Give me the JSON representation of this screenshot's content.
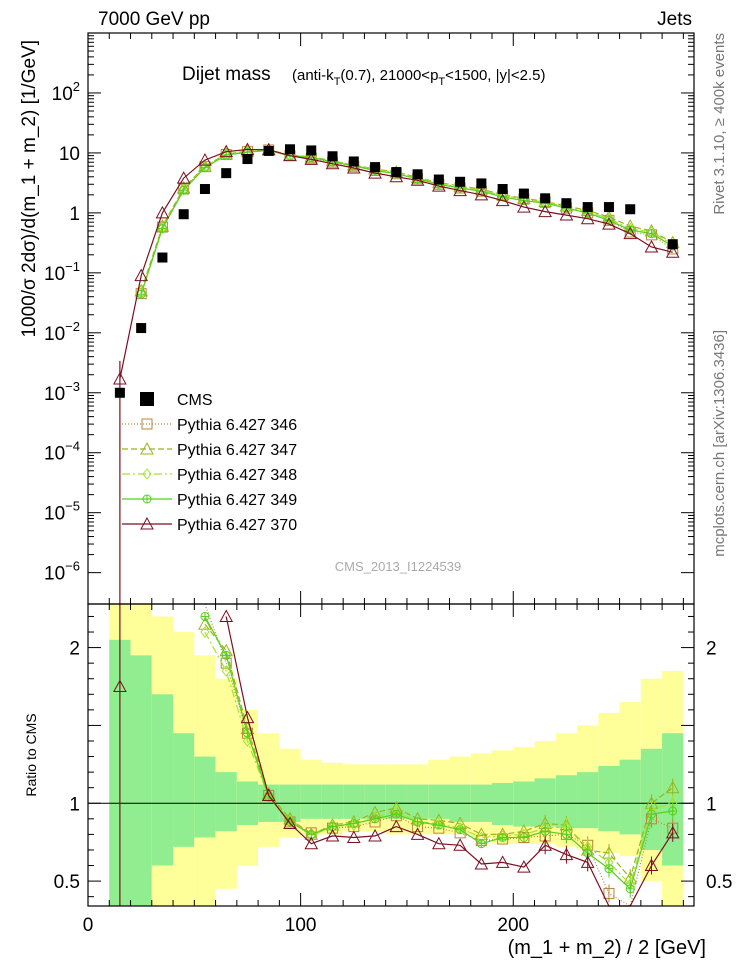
{
  "header": {
    "energy_label": "7000 GeV pp",
    "process_label": "Jets"
  },
  "side_labels": {
    "rivet": "Rivet 3.1.10, ≥ 400k events",
    "mcplots": "mcplots.cern.ch [arXiv:1306.3436]"
  },
  "analysis_id": "CMS_2013_I1224539",
  "colors": {
    "cms": "#000000",
    "p346": "#b8863a",
    "p347": "#9bb41a",
    "p348": "#a6e32a",
    "p349": "#55d11e",
    "p370": "#7a1020",
    "band_outer": "#ffff99",
    "band_inner": "#90ee90"
  },
  "chart_data": [
    {
      "type": "scatter",
      "panel": "main",
      "title": "Dijet mass",
      "title_detail": {
        "pre": "(anti-k",
        "sub1": "T",
        "mid1": "(0.7), 21000<p",
        "sub2": "T",
        "post": "<1500, |y|<2.5)"
      },
      "ylabel": "1000/σ 2dσ)/d(m_1 + m_2) [1/GeV]",
      "xlabel": "(m_1 + m_2) / 2 [GeV]",
      "yscale": "log",
      "ylim": [
        3e-07,
        1000
      ],
      "xlim": [
        0,
        285
      ],
      "x_ticks": [
        0,
        100,
        200
      ],
      "y_ticks": [
        {
          "value": 100,
          "base": "10",
          "exp": "2"
        },
        {
          "value": 10,
          "label": "10"
        },
        {
          "value": 1,
          "label": "1"
        },
        {
          "value": 0.1,
          "base": "10",
          "exp": "−1"
        },
        {
          "value": 0.01,
          "base": "10",
          "exp": "−2"
        },
        {
          "value": 0.001,
          "base": "10",
          "exp": "−3"
        },
        {
          "value": 0.0001,
          "base": "10",
          "exp": "−4"
        },
        {
          "value": 1e-05,
          "base": "10",
          "exp": "−5"
        },
        {
          "value": 1e-06,
          "base": "10",
          "exp": "−6"
        }
      ],
      "legend_position": "middle-left",
      "x": [
        15,
        25,
        35,
        45,
        55,
        65,
        75,
        85,
        95,
        105,
        115,
        125,
        135,
        145,
        155,
        165,
        175,
        185,
        195,
        205,
        215,
        225,
        235,
        245,
        255,
        265,
        275
      ],
      "series": [
        {
          "name": "CMS",
          "key": "cms",
          "marker": "square",
          "values": [
            0.001,
            0.012,
            0.18,
            0.95,
            2.5,
            4.6,
            7.9,
            10.8,
            11.5,
            11.0,
            8.8,
            7.2,
            5.8,
            4.8,
            4.4,
            3.6,
            3.3,
            3.1,
            2.5,
            2.1,
            1.75,
            1.45,
            1.25,
            1.25,
            1.15,
            null,
            0.3
          ]
        },
        {
          "name": "Pythia 6.427 346",
          "key": "p346",
          "marker": "square-open",
          "dash": "1,2",
          "values": [
            null,
            0.045,
            0.58,
            2.5,
            5.9,
            9.4,
            10.5,
            11.2,
            9.0,
            8.2,
            7.0,
            6.0,
            5.1,
            4.5,
            3.7,
            3.0,
            2.6,
            2.3,
            1.95,
            1.7,
            1.5,
            1.2,
            1.0,
            0.75,
            0.48,
            0.43,
            0.25
          ]
        },
        {
          "name": "Pythia 6.427 347",
          "key": "p347",
          "marker": "triangle-open",
          "dash": "6,3",
          "values": [
            null,
            0.05,
            0.6,
            2.6,
            6.0,
            9.6,
            10.7,
            11.3,
            9.2,
            8.6,
            7.4,
            6.3,
            5.4,
            4.8,
            3.9,
            3.2,
            2.8,
            2.5,
            2.0,
            1.75,
            1.55,
            1.3,
            1.1,
            0.85,
            0.6,
            0.5,
            0.32
          ]
        },
        {
          "name": "Pythia 6.427 348",
          "key": "p348",
          "marker": "diamond-open",
          "dash": "8,3,2,3",
          "values": [
            null,
            0.046,
            0.56,
            2.45,
            5.8,
            9.3,
            10.4,
            11.1,
            9.1,
            8.5,
            7.2,
            6.2,
            5.3,
            4.6,
            3.8,
            3.1,
            2.7,
            2.4,
            1.95,
            1.7,
            1.5,
            1.25,
            1.05,
            0.8,
            0.55,
            0.48,
            0.3
          ]
        },
        {
          "name": "Pythia 6.427 349",
          "key": "p349",
          "marker": "circle-plus",
          "dash": "",
          "values": [
            null,
            0.044,
            0.55,
            2.4,
            5.7,
            9.2,
            10.3,
            11.0,
            8.9,
            8.4,
            7.1,
            6.1,
            5.1,
            4.5,
            3.7,
            3.0,
            2.6,
            2.3,
            1.85,
            1.6,
            1.45,
            1.2,
            1.0,
            0.75,
            0.52,
            0.45,
            0.28
          ]
        },
        {
          "name": "Pythia 6.427 370",
          "key": "p370",
          "marker": "triangle-open",
          "dash": "",
          "values": [
            0.0017,
            0.09,
            1.0,
            3.8,
            7.6,
            10.5,
            11.4,
            11.3,
            9.0,
            7.8,
            6.6,
            5.6,
            4.6,
            4.0,
            3.5,
            2.8,
            2.35,
            2.0,
            1.6,
            1.25,
            1.05,
            0.92,
            0.8,
            0.65,
            0.45,
            0.27,
            0.22
          ]
        }
      ]
    },
    {
      "type": "line",
      "panel": "ratio",
      "ylabel": "Ratio to CMS",
      "ylim": [
        0.34,
        2.28
      ],
      "xlim": [
        0,
        285
      ],
      "y_ticks": [
        {
          "value": 2,
          "label": "2"
        },
        {
          "value": 1,
          "label": "1"
        },
        {
          "value": 0.5,
          "label": "0.5"
        }
      ],
      "reference_line": 1,
      "bins": [
        10,
        20,
        30,
        40,
        50,
        60,
        70,
        80,
        90,
        100,
        110,
        120,
        130,
        140,
        150,
        160,
        170,
        180,
        190,
        200,
        210,
        220,
        230,
        240,
        250,
        260,
        270,
        280
      ],
      "band_outer_low": [
        0.34,
        0.34,
        0.34,
        0.34,
        0.34,
        0.45,
        0.6,
        0.72,
        0.78,
        0.8,
        0.8,
        0.82,
        0.82,
        0.8,
        0.8,
        0.8,
        0.8,
        0.78,
        0.74,
        0.74,
        0.74,
        0.72,
        0.7,
        0.68,
        0.66,
        0.5,
        0.34
      ],
      "band_outer_high": [
        2.28,
        2.28,
        2.2,
        2.1,
        1.95,
        1.8,
        1.6,
        1.45,
        1.35,
        1.28,
        1.26,
        1.25,
        1.25,
        1.25,
        1.25,
        1.28,
        1.3,
        1.32,
        1.34,
        1.36,
        1.4,
        1.45,
        1.5,
        1.58,
        1.65,
        1.8,
        1.85
      ],
      "band_inner_low": [
        0.34,
        0.34,
        0.6,
        0.72,
        0.78,
        0.82,
        0.86,
        0.88,
        0.88,
        0.9,
        0.9,
        0.9,
        0.9,
        0.9,
        0.9,
        0.9,
        0.88,
        0.88,
        0.86,
        0.85,
        0.85,
        0.84,
        0.84,
        0.82,
        0.8,
        0.7,
        0.6
      ],
      "band_inner_high": [
        2.05,
        1.95,
        1.7,
        1.45,
        1.3,
        1.2,
        1.14,
        1.12,
        1.12,
        1.12,
        1.12,
        1.12,
        1.12,
        1.12,
        1.12,
        1.12,
        1.12,
        1.12,
        1.13,
        1.14,
        1.16,
        1.18,
        1.2,
        1.24,
        1.28,
        1.35,
        1.45
      ],
      "x": [
        15,
        25,
        35,
        45,
        55,
        65,
        75,
        85,
        95,
        105,
        115,
        125,
        135,
        145,
        155,
        165,
        175,
        185,
        195,
        205,
        215,
        225,
        235,
        245,
        255,
        265,
        275
      ],
      "series": [
        {
          "name": "Pythia 6.427 346",
          "key": "p346",
          "values": [
            null,
            null,
            null,
            null,
            2.38,
            1.9,
            1.45,
            1.05,
            0.88,
            0.81,
            0.84,
            0.85,
            0.88,
            0.92,
            0.85,
            0.84,
            0.81,
            0.76,
            0.77,
            0.78,
            0.79,
            0.8,
            0.73,
            0.42,
            0.33,
            0.9,
            0.84
          ]
        },
        {
          "name": "Pythia 6.427 347",
          "key": "p347",
          "values": [
            null,
            null,
            null,
            null,
            2.15,
            1.98,
            1.48,
            1.06,
            0.9,
            0.8,
            0.86,
            0.88,
            0.94,
            0.97,
            0.9,
            0.89,
            0.87,
            0.8,
            0.8,
            0.82,
            0.87,
            0.86,
            0.7,
            0.68,
            0.52,
            1.0,
            1.1
          ]
        },
        {
          "name": "Pythia 6.427 348",
          "key": "p348",
          "values": [
            null,
            null,
            null,
            null,
            2.1,
            1.85,
            1.4,
            1.04,
            0.89,
            0.79,
            0.85,
            0.86,
            0.91,
            0.95,
            0.88,
            0.87,
            0.84,
            0.78,
            0.79,
            0.8,
            0.84,
            0.85,
            0.72,
            0.62,
            0.48,
            0.96,
            1.0
          ]
        },
        {
          "name": "Pythia 6.427 349",
          "key": "p349",
          "values": [
            null,
            null,
            null,
            null,
            2.2,
            1.95,
            1.45,
            1.04,
            0.88,
            0.8,
            0.85,
            0.87,
            0.9,
            0.93,
            0.88,
            0.86,
            0.83,
            0.74,
            0.78,
            0.78,
            0.82,
            0.8,
            0.68,
            0.58,
            0.45,
            0.93,
            0.95
          ]
        },
        {
          "name": "Pythia 6.427 370",
          "key": "p370",
          "values": [
            1.75,
            null,
            null,
            null,
            null,
            2.2,
            1.55,
            1.05,
            0.87,
            0.74,
            0.79,
            0.78,
            0.79,
            0.85,
            0.8,
            0.74,
            0.73,
            0.61,
            0.62,
            0.59,
            0.73,
            0.67,
            0.62,
            0.34,
            0.34,
            0.6,
            0.81
          ]
        }
      ]
    }
  ]
}
